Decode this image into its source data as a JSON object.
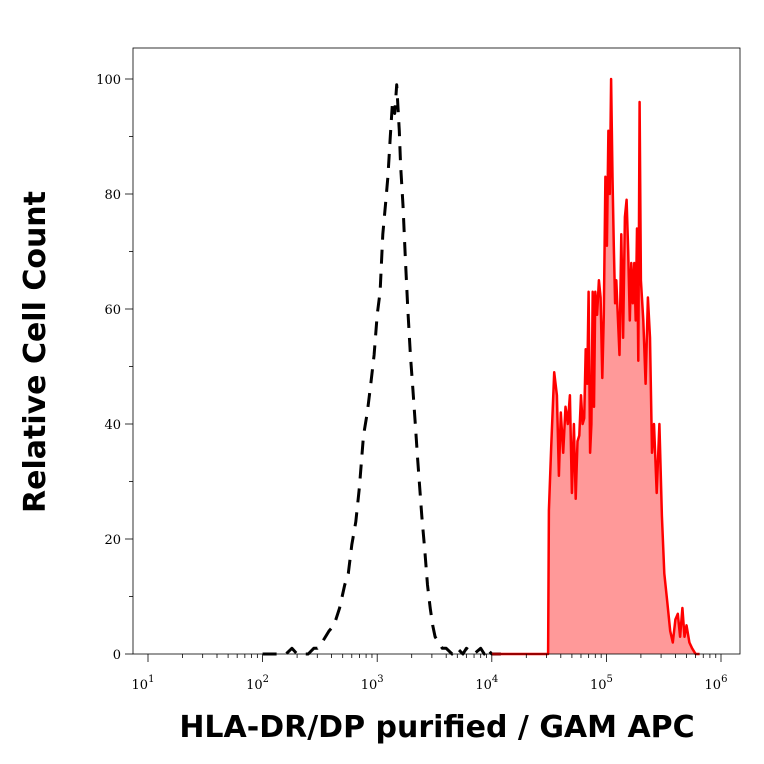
{
  "chart_data": {
    "type": "area",
    "xlabel": "HLA-DR/DP purified / GAM APC",
    "ylabel": "Relative Cell Count",
    "x_scale": "log",
    "xlim": [
      10,
      1000000
    ],
    "ylim": [
      0,
      100
    ],
    "x_ticks": [
      {
        "value": 10,
        "base": "10",
        "exp": "1"
      },
      {
        "value": 100,
        "base": "10",
        "exp": "2"
      },
      {
        "value": 1000,
        "base": "10",
        "exp": "3"
      },
      {
        "value": 10000,
        "base": "10",
        "exp": "4"
      },
      {
        "value": 100000,
        "base": "10",
        "exp": "5"
      },
      {
        "value": 1000000,
        "base": "10",
        "exp": "6"
      }
    ],
    "y_ticks": [
      0,
      20,
      40,
      60,
      80,
      100
    ],
    "grid": false,
    "legend": "none",
    "series": [
      {
        "style": "dashed",
        "color": "#000000",
        "fill": "none",
        "x": [
          100,
          160,
          180,
          200,
          250,
          280,
          300,
          330,
          380,
          420,
          470,
          520,
          560,
          600,
          650,
          700,
          760,
          820,
          880,
          940,
          1000,
          1060,
          1120,
          1180,
          1240,
          1300,
          1360,
          1420,
          1480,
          1520,
          1560,
          1600,
          1680,
          1760,
          1850,
          1950,
          2050,
          2150,
          2250,
          2350,
          2450,
          2600,
          2750,
          2900,
          3050,
          3200,
          3450,
          3700,
          4000,
          4500,
          5000,
          5600,
          6000,
          7000,
          8000,
          8600,
          9000,
          10000,
          12000
        ],
        "values": [
          0,
          0,
          1,
          0,
          0,
          1,
          1,
          2,
          4,
          5,
          8,
          12,
          14,
          19,
          23,
          29,
          38,
          42,
          47,
          52,
          59,
          63,
          73,
          78,
          83,
          90,
          96,
          94,
          99,
          95,
          91,
          85,
          78,
          69,
          60,
          52,
          46,
          40,
          34,
          29,
          24,
          18,
          12,
          8,
          5,
          3,
          2,
          1,
          1,
          0,
          1,
          0,
          1,
          0,
          1,
          0,
          1,
          0,
          0
        ]
      },
      {
        "style": "solid",
        "color": "#ff0000",
        "fill": "#ff9999",
        "x": [
          10000,
          31000,
          31500,
          33000,
          35000,
          37000,
          38500,
          40000,
          42000,
          44000,
          46000,
          48000,
          50000,
          52000,
          54000,
          56000,
          58000,
          60000,
          62000,
          64000,
          66000,
          68000,
          70000,
          72000,
          74000,
          76000,
          78000,
          80000,
          83000,
          86000,
          89000,
          92000,
          95000,
          98000,
          101000,
          104000,
          107000,
          110000,
          113000,
          116000,
          119000,
          122000,
          125000,
          130000,
          135000,
          140000,
          145000,
          150000,
          155000,
          160000,
          165000,
          170000,
          175000,
          180000,
          185000,
          190000,
          195000,
          200000,
          210000,
          220000,
          230000,
          240000,
          250000,
          260000,
          275000,
          290000,
          305000,
          320000,
          340000,
          360000,
          380000,
          400000,
          420000,
          440000,
          460000,
          480000,
          500000,
          530000,
          560000,
          600000,
          650000
        ],
        "values": [
          0,
          0,
          25,
          36,
          49,
          45,
          31,
          42,
          35,
          43,
          40,
          45,
          28,
          40,
          27,
          37,
          38,
          45,
          40,
          41,
          53,
          47,
          63,
          35,
          40,
          63,
          43,
          63,
          59,
          65,
          62,
          48,
          59,
          83,
          71,
          91,
          80,
          100,
          83,
          71,
          61,
          65,
          60,
          52,
          73,
          55,
          76,
          79,
          70,
          58,
          68,
          61,
          68,
          58,
          74,
          51,
          96,
          65,
          58,
          47,
          62,
          55,
          35,
          40,
          28,
          40,
          24,
          14,
          9,
          4,
          2,
          6,
          7,
          3,
          8,
          3,
          5,
          2,
          1,
          0,
          0
        ]
      }
    ]
  }
}
